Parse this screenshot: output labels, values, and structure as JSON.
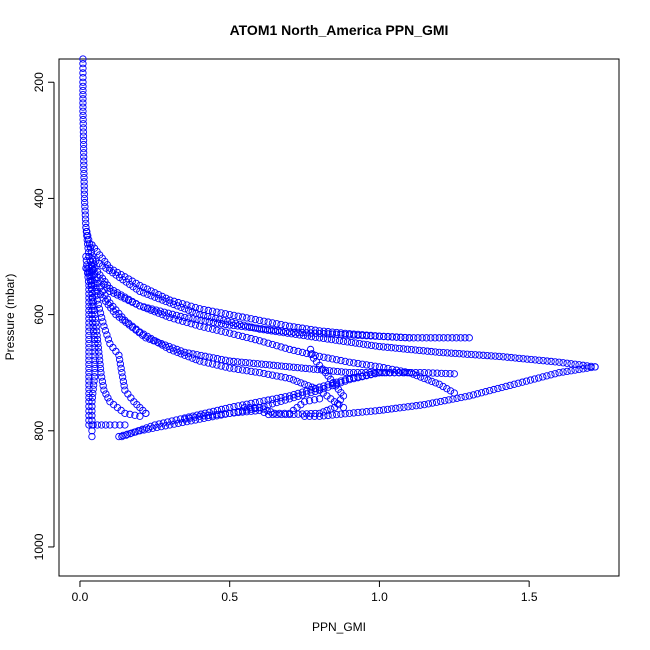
{
  "chart_data": {
    "type": "scatter",
    "title": "ATOM1 North_America PPN_GMI",
    "xlabel": "PPN_GMI",
    "ylabel": "Pressure (mbar)",
    "xlim": [
      -0.07,
      1.8
    ],
    "ylim": [
      1050,
      160
    ],
    "y_reversed": true,
    "x_ticks": [
      0.0,
      0.5,
      1.0,
      1.5
    ],
    "x_tick_labels": [
      "0.0",
      "0.5",
      "1.0",
      "1.5"
    ],
    "y_ticks": [
      200,
      400,
      600,
      800,
      1000
    ],
    "y_tick_labels": [
      "200",
      "400",
      "600",
      "800",
      "1000"
    ],
    "grid": false,
    "marker": "open-circle",
    "color": "#0000ff",
    "series": [
      {
        "points": [
          [
            0.01,
            160
          ],
          [
            0.01,
            200
          ],
          [
            0.01,
            250
          ],
          [
            0.012,
            300
          ],
          [
            0.013,
            350
          ],
          [
            0.015,
            400
          ],
          [
            0.02,
            450
          ],
          [
            0.03,
            500
          ],
          [
            0.05,
            530
          ],
          [
            0.1,
            560
          ],
          [
            0.2,
            585
          ],
          [
            0.35,
            605
          ],
          [
            0.5,
            618
          ],
          [
            0.7,
            630
          ],
          [
            0.9,
            635
          ],
          [
            1.1,
            640
          ],
          [
            1.2,
            640
          ],
          [
            1.3,
            640
          ]
        ]
      },
      {
        "points": [
          [
            0.02,
            450
          ],
          [
            0.05,
            520
          ],
          [
            0.1,
            555
          ],
          [
            0.2,
            585
          ],
          [
            0.3,
            605
          ],
          [
            0.4,
            620
          ],
          [
            0.5,
            632
          ],
          [
            0.6,
            645
          ],
          [
            0.7,
            660
          ],
          [
            0.8,
            672
          ],
          [
            0.9,
            682
          ],
          [
            1.0,
            690
          ],
          [
            1.1,
            700
          ],
          [
            1.2,
            720
          ],
          [
            1.25,
            735
          ]
        ]
      },
      {
        "points": [
          [
            0.03,
            500
          ],
          [
            0.05,
            540
          ],
          [
            0.1,
            580
          ],
          [
            0.15,
            610
          ],
          [
            0.2,
            630
          ],
          [
            0.3,
            660
          ],
          [
            0.4,
            680
          ],
          [
            0.5,
            692
          ],
          [
            0.6,
            700
          ],
          [
            0.7,
            710
          ],
          [
            0.8,
            730
          ],
          [
            0.85,
            750
          ],
          [
            0.88,
            760
          ]
        ]
      },
      {
        "points": [
          [
            0.04,
            480
          ],
          [
            0.1,
            520
          ],
          [
            0.2,
            550
          ],
          [
            0.3,
            575
          ],
          [
            0.4,
            590
          ],
          [
            0.5,
            600
          ],
          [
            0.6,
            610
          ],
          [
            0.7,
            620
          ],
          [
            0.8,
            628
          ],
          [
            0.9,
            633
          ],
          [
            1.0,
            637
          ],
          [
            1.1,
            640
          ]
        ]
      },
      {
        "points": [
          [
            0.02,
            520
          ],
          [
            0.06,
            560
          ],
          [
            0.12,
            600
          ],
          [
            0.22,
            640
          ],
          [
            0.35,
            665
          ],
          [
            0.5,
            680
          ],
          [
            0.7,
            690
          ],
          [
            0.9,
            700
          ],
          [
            1.05,
            700
          ],
          [
            1.15,
            700
          ],
          [
            1.25,
            702
          ]
        ]
      },
      {
        "points": [
          [
            0.03,
            500
          ],
          [
            0.2,
            560
          ],
          [
            0.4,
            600
          ],
          [
            0.6,
            625
          ],
          [
            0.8,
            640
          ],
          [
            1.0,
            655
          ],
          [
            1.2,
            665
          ],
          [
            1.4,
            672
          ],
          [
            1.6,
            682
          ],
          [
            1.72,
            690
          ]
        ]
      },
      {
        "points": [
          [
            1.72,
            690
          ],
          [
            1.6,
            700
          ],
          [
            1.45,
            720
          ],
          [
            1.3,
            740
          ],
          [
            1.15,
            755
          ],
          [
            1.0,
            765
          ],
          [
            0.9,
            770
          ],
          [
            0.8,
            775
          ],
          [
            0.75,
            775
          ]
        ]
      },
      {
        "points": [
          [
            0.13,
            810
          ],
          [
            0.2,
            800
          ],
          [
            0.3,
            790
          ],
          [
            0.4,
            780
          ],
          [
            0.5,
            770
          ],
          [
            0.6,
            760
          ],
          [
            0.7,
            745
          ],
          [
            0.8,
            730
          ],
          [
            0.9,
            712
          ],
          [
            1.0,
            700
          ],
          [
            1.05,
            700
          ],
          [
            1.1,
            700
          ]
        ]
      },
      {
        "points": [
          [
            0.14,
            810
          ],
          [
            0.25,
            790
          ],
          [
            0.35,
            778
          ],
          [
            0.5,
            760
          ],
          [
            0.6,
            750
          ],
          [
            0.7,
            740
          ],
          [
            0.8,
            725
          ],
          [
            0.9,
            710
          ],
          [
            1.0,
            700
          ]
        ]
      },
      {
        "points": [
          [
            0.35,
            780
          ],
          [
            0.4,
            775
          ],
          [
            0.5,
            770
          ],
          [
            0.6,
            765
          ],
          [
            0.63,
            772
          ],
          [
            0.7,
            772
          ],
          [
            0.8,
            770
          ],
          [
            0.85,
            760
          ],
          [
            0.88,
            740
          ],
          [
            0.82,
            700
          ],
          [
            0.78,
            675
          ],
          [
            0.77,
            660
          ]
        ]
      },
      {
        "points": [
          [
            0.02,
            500
          ],
          [
            0.03,
            550
          ],
          [
            0.03,
            600
          ],
          [
            0.03,
            650
          ],
          [
            0.03,
            700
          ],
          [
            0.03,
            750
          ],
          [
            0.03,
            790
          ],
          [
            0.1,
            790
          ],
          [
            0.15,
            790
          ]
        ]
      },
      {
        "points": [
          [
            0.03,
            520
          ],
          [
            0.05,
            600
          ],
          [
            0.06,
            650
          ],
          [
            0.07,
            700
          ],
          [
            0.08,
            730
          ],
          [
            0.1,
            750
          ],
          [
            0.15,
            770
          ],
          [
            0.2,
            775
          ],
          [
            0.22,
            770
          ]
        ]
      },
      {
        "points": [
          [
            0.05,
            560
          ],
          [
            0.08,
            620
          ],
          [
            0.1,
            650
          ],
          [
            0.13,
            670
          ],
          [
            0.14,
            700
          ],
          [
            0.15,
            730
          ],
          [
            0.18,
            750
          ],
          [
            0.2,
            760
          ],
          [
            0.22,
            770
          ]
        ]
      },
      {
        "points": [
          [
            0.04,
            520
          ],
          [
            0.04,
            600
          ],
          [
            0.05,
            650
          ],
          [
            0.05,
            700
          ],
          [
            0.04,
            750
          ],
          [
            0.04,
            790
          ],
          [
            0.04,
            810
          ]
        ]
      },
      {
        "points": [
          [
            0.55,
            760
          ],
          [
            0.6,
            760
          ],
          [
            0.65,
            770
          ],
          [
            0.7,
            770
          ],
          [
            0.75,
            750
          ],
          [
            0.8,
            745
          ]
        ]
      }
    ]
  }
}
